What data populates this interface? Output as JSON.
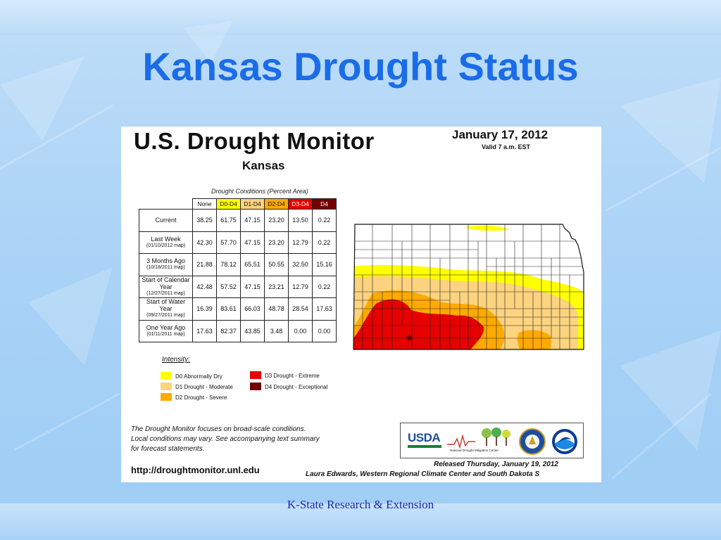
{
  "slide": {
    "title": "Kansas Drought Status",
    "footer": "K-State Research & Extension"
  },
  "monitor": {
    "title": "U.S. Drought Monitor",
    "state": "Kansas",
    "date": "January 17, 2012",
    "valid": "Valid 7 a.m. EST",
    "table_caption": "Drought Conditions (Percent Area)",
    "columns": [
      "None",
      "D0-D4",
      "D1-D4",
      "D2-D4",
      "D3-D4",
      "D4"
    ],
    "rows": [
      {
        "label": "Current",
        "sub": "",
        "values": [
          "38.25",
          "61.75",
          "47.15",
          "23.20",
          "13.50",
          "0.22"
        ]
      },
      {
        "label": "Last Week",
        "sub": "(01/10/2012 map)",
        "values": [
          "42.30",
          "57.70",
          "47.15",
          "23.20",
          "12.79",
          "0.22"
        ]
      },
      {
        "label": "3 Months Ago",
        "sub": "(10/18/2011 map)",
        "values": [
          "21.88",
          "78.12",
          "65.51",
          "50.55",
          "32.50",
          "15.16"
        ]
      },
      {
        "label": "Start of Calendar Year",
        "sub": "(12/27/2011 map)",
        "values": [
          "42.48",
          "57.52",
          "47.15",
          "23.21",
          "12.79",
          "0.22"
        ]
      },
      {
        "label": "Start of Water Year",
        "sub": "(09/27/2011 map)",
        "values": [
          "16.39",
          "83.61",
          "66.03",
          "48.78",
          "28.54",
          "17.63"
        ]
      },
      {
        "label": "One Year Ago",
        "sub": "(01/11/2011 map)",
        "values": [
          "17.63",
          "82.37",
          "43.85",
          "3.48",
          "0.00",
          "0.00"
        ]
      }
    ],
    "intensity_label": "Intensity:",
    "legend": [
      {
        "label": "D0 Abnormally Dry",
        "color": "#ffff00"
      },
      {
        "label": "D1 Drought - Moderate",
        "color": "#fcd37f"
      },
      {
        "label": "D2 Drought - Severe",
        "color": "#ffaa00"
      },
      {
        "label": "D3 Drought - Extreme",
        "color": "#e60000"
      },
      {
        "label": "D4 Drought - Exceptional",
        "color": "#730000"
      }
    ],
    "note_lines": [
      "The Drought Monitor focuses on broad-scale conditions.",
      "Local conditions may vary. See accompanying text summary",
      "for forecast statements."
    ],
    "url": "http://droughtmonitor.unl.edu",
    "released": "Released Thursday, January 19, 2012",
    "authors": "Laura Edwards, Western Regional Climate Center and South Dakota S",
    "logos": {
      "usda": "USDA",
      "ndmc": "National Drought Mitigation Center"
    }
  }
}
